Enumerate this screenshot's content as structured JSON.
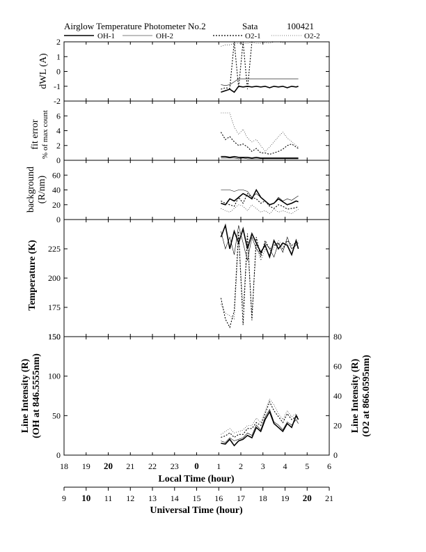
{
  "header": {
    "title": "Airglow Temperature Photometer No.2",
    "site": "Sata",
    "date": "100421"
  },
  "legend": [
    {
      "name": "OH-1",
      "style": "thick"
    },
    {
      "name": "OH-2",
      "style": "thin"
    },
    {
      "name": "O2-1",
      "style": "dotted"
    },
    {
      "name": "O2-2",
      "style": "fine-dotted"
    }
  ],
  "x_axes": {
    "local": {
      "label": "Local Time (hour)",
      "ticks": [
        "18",
        "19",
        "20",
        "21",
        "22",
        "23",
        "0",
        "1",
        "2",
        "3",
        "4",
        "5",
        "6"
      ]
    },
    "universal": {
      "label": "Universal Time (hour)",
      "ticks": [
        "9",
        "10",
        "11",
        "12",
        "13",
        "14",
        "15",
        "16",
        "17",
        "18",
        "19",
        "20",
        "21"
      ]
    }
  },
  "panel_labels": {
    "dwl": "dWL (A)",
    "fit1": "fit error",
    "fit2": "% of max count",
    "bg1": "background",
    "bg2": "(R/nm)",
    "temp": "Temperature (K)",
    "int_left1": "Line Intensity (R)",
    "int_left2": "(OH at 846.5555nm)",
    "int_right1": "Line Intensity (R)",
    "int_right2": "(O2 at 866.0595nm)"
  },
  "chart_data": [
    {
      "panel": "dwl",
      "type": "line",
      "ylabel": "dWL (A)",
      "ylim": [
        -2,
        2
      ],
      "yticks": [
        "-2",
        "-1",
        "0",
        "1",
        "2"
      ],
      "x": [
        1.1,
        1.3,
        1.5,
        1.7,
        1.9,
        2.1,
        2.3,
        2.5,
        2.7,
        2.9,
        3.1,
        3.3,
        3.5,
        3.7,
        3.9,
        4.1,
        4.3,
        4.5,
        4.6
      ],
      "series": [
        {
          "name": "OH-1",
          "values": [
            -1.4,
            -1.3,
            -1.2,
            -1.4,
            -1.0,
            -1.05,
            -1.0,
            -1.05,
            -1.0,
            -1.05,
            -1.0,
            -1.1,
            -1.0,
            -1.05,
            -1.0,
            -1.1,
            -1.0,
            -1.05,
            -1.0
          ]
        },
        {
          "name": "OH-2",
          "values": [
            -0.9,
            -0.95,
            -0.9,
            -0.7,
            -0.5,
            -0.5,
            -0.5,
            -0.5,
            -0.5,
            -0.5,
            -0.5,
            -0.5,
            -0.5,
            -0.5,
            -0.5,
            -0.5,
            -0.5,
            -0.5,
            -0.5
          ]
        },
        {
          "name": "O2-1",
          "values": [
            -1.2,
            -1.1,
            -1.15,
            2.0,
            -1.1,
            2.0,
            -1.2,
            2.0,
            2.0,
            2.0,
            2.0,
            2.0,
            2.0,
            2.0,
            2.0,
            2.0,
            2.0,
            2.0,
            2.0
          ]
        },
        {
          "name": "O2-2",
          "values": [
            1.7,
            1.8,
            1.8,
            1.9,
            1.9,
            1.9,
            1.9,
            1.95,
            1.9,
            1.9,
            1.95,
            1.9,
            2.0,
            2.0,
            1.95,
            2.0,
            2.0,
            2.0,
            2.0
          ]
        }
      ]
    },
    {
      "panel": "fit_error",
      "type": "line",
      "ylabel": "fit error % of max count",
      "ylim": [
        0,
        8
      ],
      "yticks": [
        "0",
        "2",
        "4",
        "6"
      ],
      "x": [
        1.1,
        1.3,
        1.5,
        1.7,
        1.9,
        2.1,
        2.3,
        2.5,
        2.7,
        2.9,
        3.1,
        3.3,
        3.5,
        3.7,
        3.9,
        4.1,
        4.3,
        4.5,
        4.6
      ],
      "series": [
        {
          "name": "OH-1",
          "values": [
            0.5,
            0.5,
            0.4,
            0.5,
            0.4,
            0.4,
            0.4,
            0.3,
            0.4,
            0.3,
            0.3,
            0.3,
            0.3,
            0.3,
            0.3,
            0.3,
            0.3,
            0.3,
            0.3
          ]
        },
        {
          "name": "OH-2",
          "values": [
            0.3,
            0.3,
            0.3,
            0.3,
            0.2,
            0.3,
            0.2,
            0.2,
            0.2,
            0.2,
            0.2,
            0.2,
            0.2,
            0.2,
            0.2,
            0.2,
            0.2,
            0.2,
            0.2
          ]
        },
        {
          "name": "O2-1",
          "values": [
            3.8,
            2.8,
            3.2,
            2.5,
            2.0,
            2.2,
            1.8,
            1.2,
            1.6,
            1.0,
            1.0,
            0.8,
            1.0,
            1.2,
            1.5,
            2.0,
            2.2,
            1.8,
            1.6
          ]
        },
        {
          "name": "O2-2",
          "values": [
            6.4,
            6.4,
            6.4,
            4.5,
            3.5,
            4.2,
            3.0,
            2.5,
            2.8,
            2.0,
            1.2,
            1.8,
            2.5,
            3.2,
            3.8,
            3.0,
            2.5,
            2.0,
            1.8
          ]
        }
      ]
    },
    {
      "panel": "background",
      "type": "line",
      "ylabel": "background (R/nm)",
      "ylim": [
        0,
        80
      ],
      "yticks": [
        "0",
        "20",
        "40",
        "60"
      ],
      "x": [
        1.1,
        1.3,
        1.5,
        1.7,
        1.9,
        2.1,
        2.3,
        2.5,
        2.7,
        2.9,
        3.1,
        3.3,
        3.5,
        3.7,
        3.9,
        4.1,
        4.3,
        4.5,
        4.6
      ],
      "series": [
        {
          "name": "OH-1",
          "values": [
            22,
            20,
            28,
            25,
            30,
            35,
            32,
            28,
            40,
            30,
            25,
            20,
            22,
            28,
            24,
            20,
            22,
            25,
            24
          ]
        },
        {
          "name": "OH-2",
          "values": [
            40,
            40,
            40,
            38,
            40,
            40,
            38,
            30,
            35,
            30,
            25,
            20,
            22,
            30,
            25,
            28,
            26,
            30,
            32
          ]
        },
        {
          "name": "O2-1",
          "values": [
            25,
            22,
            20,
            18,
            30,
            22,
            35,
            30,
            28,
            22,
            25,
            18,
            15,
            20,
            18,
            14,
            15,
            16,
            18
          ]
        },
        {
          "name": "O2-2",
          "values": [
            15,
            12,
            10,
            15,
            20,
            18,
            12,
            20,
            15,
            10,
            12,
            8,
            14,
            10,
            12,
            10,
            8,
            12,
            14
          ]
        }
      ]
    },
    {
      "panel": "temperature",
      "type": "line",
      "ylabel": "Temperature (K)",
      "ylim": [
        150,
        250
      ],
      "yticks": [
        "150",
        "175",
        "200",
        "225"
      ],
      "x": [
        1.1,
        1.3,
        1.5,
        1.7,
        1.9,
        2.1,
        2.3,
        2.5,
        2.7,
        2.9,
        3.1,
        3.3,
        3.5,
        3.7,
        3.9,
        4.1,
        4.3,
        4.5,
        4.6
      ],
      "series": [
        {
          "name": "OH-1",
          "values": [
            235,
            245,
            225,
            240,
            230,
            242,
            225,
            238,
            230,
            222,
            228,
            218,
            232,
            225,
            230,
            228,
            220,
            232,
            225
          ]
        },
        {
          "name": "OH-2",
          "values": [
            240,
            225,
            235,
            220,
            245,
            230,
            215,
            235,
            225,
            220,
            230,
            225,
            218,
            230,
            222,
            235,
            225,
            228,
            230
          ]
        },
        {
          "name": "O2-1",
          "values": [
            183,
            165,
            158,
            172,
            240,
            160,
            238,
            164,
            235,
            218,
            232,
            225,
            228,
            230,
            225,
            232,
            228,
            230,
            232
          ]
        },
        {
          "name": "O2-2",
          "values": [
            178,
            170,
            168,
            165,
            235,
            175,
            230,
            170,
            228,
            215,
            225,
            220,
            226,
            232,
            228,
            230,
            225,
            229,
            231
          ]
        }
      ]
    },
    {
      "panel": "line_intensity",
      "type": "line",
      "ylabel": "Line Intensity (R) (OH at 846.5555nm)",
      "ylim": [
        0,
        150
      ],
      "yticks": [
        "0",
        "50",
        "100",
        "150"
      ],
      "y2label": "Line Intensity (R) (O2 at 866.0595nm)",
      "y2lim": [
        0,
        80
      ],
      "y2ticks": [
        "0",
        "20",
        "40",
        "60",
        "80"
      ],
      "x": [
        1.1,
        1.3,
        1.5,
        1.7,
        1.9,
        2.1,
        2.3,
        2.5,
        2.7,
        2.9,
        3.1,
        3.3,
        3.5,
        3.7,
        3.9,
        4.1,
        4.3,
        4.5,
        4.6
      ],
      "series": [
        {
          "name": "OH-1",
          "axis": "left",
          "values": [
            15,
            14,
            20,
            12,
            18,
            20,
            25,
            22,
            35,
            30,
            45,
            55,
            40,
            35,
            30,
            40,
            35,
            50,
            45
          ]
        },
        {
          "name": "OH-2",
          "axis": "left",
          "values": [
            18,
            16,
            22,
            18,
            20,
            22,
            28,
            25,
            38,
            32,
            48,
            58,
            42,
            38,
            32,
            42,
            38,
            45,
            40
          ]
        },
        {
          "name": "O2-1",
          "axis": "right",
          "values": [
            12,
            13,
            15,
            12,
            14,
            14,
            18,
            18,
            22,
            20,
            28,
            36,
            30,
            26,
            22,
            28,
            24,
            26,
            24
          ]
        },
        {
          "name": "O2-2",
          "axis": "right",
          "values": [
            14,
            16,
            18,
            15,
            16,
            17,
            20,
            20,
            25,
            22,
            30,
            38,
            34,
            28,
            24,
            30,
            26,
            28,
            25
          ]
        }
      ]
    }
  ]
}
